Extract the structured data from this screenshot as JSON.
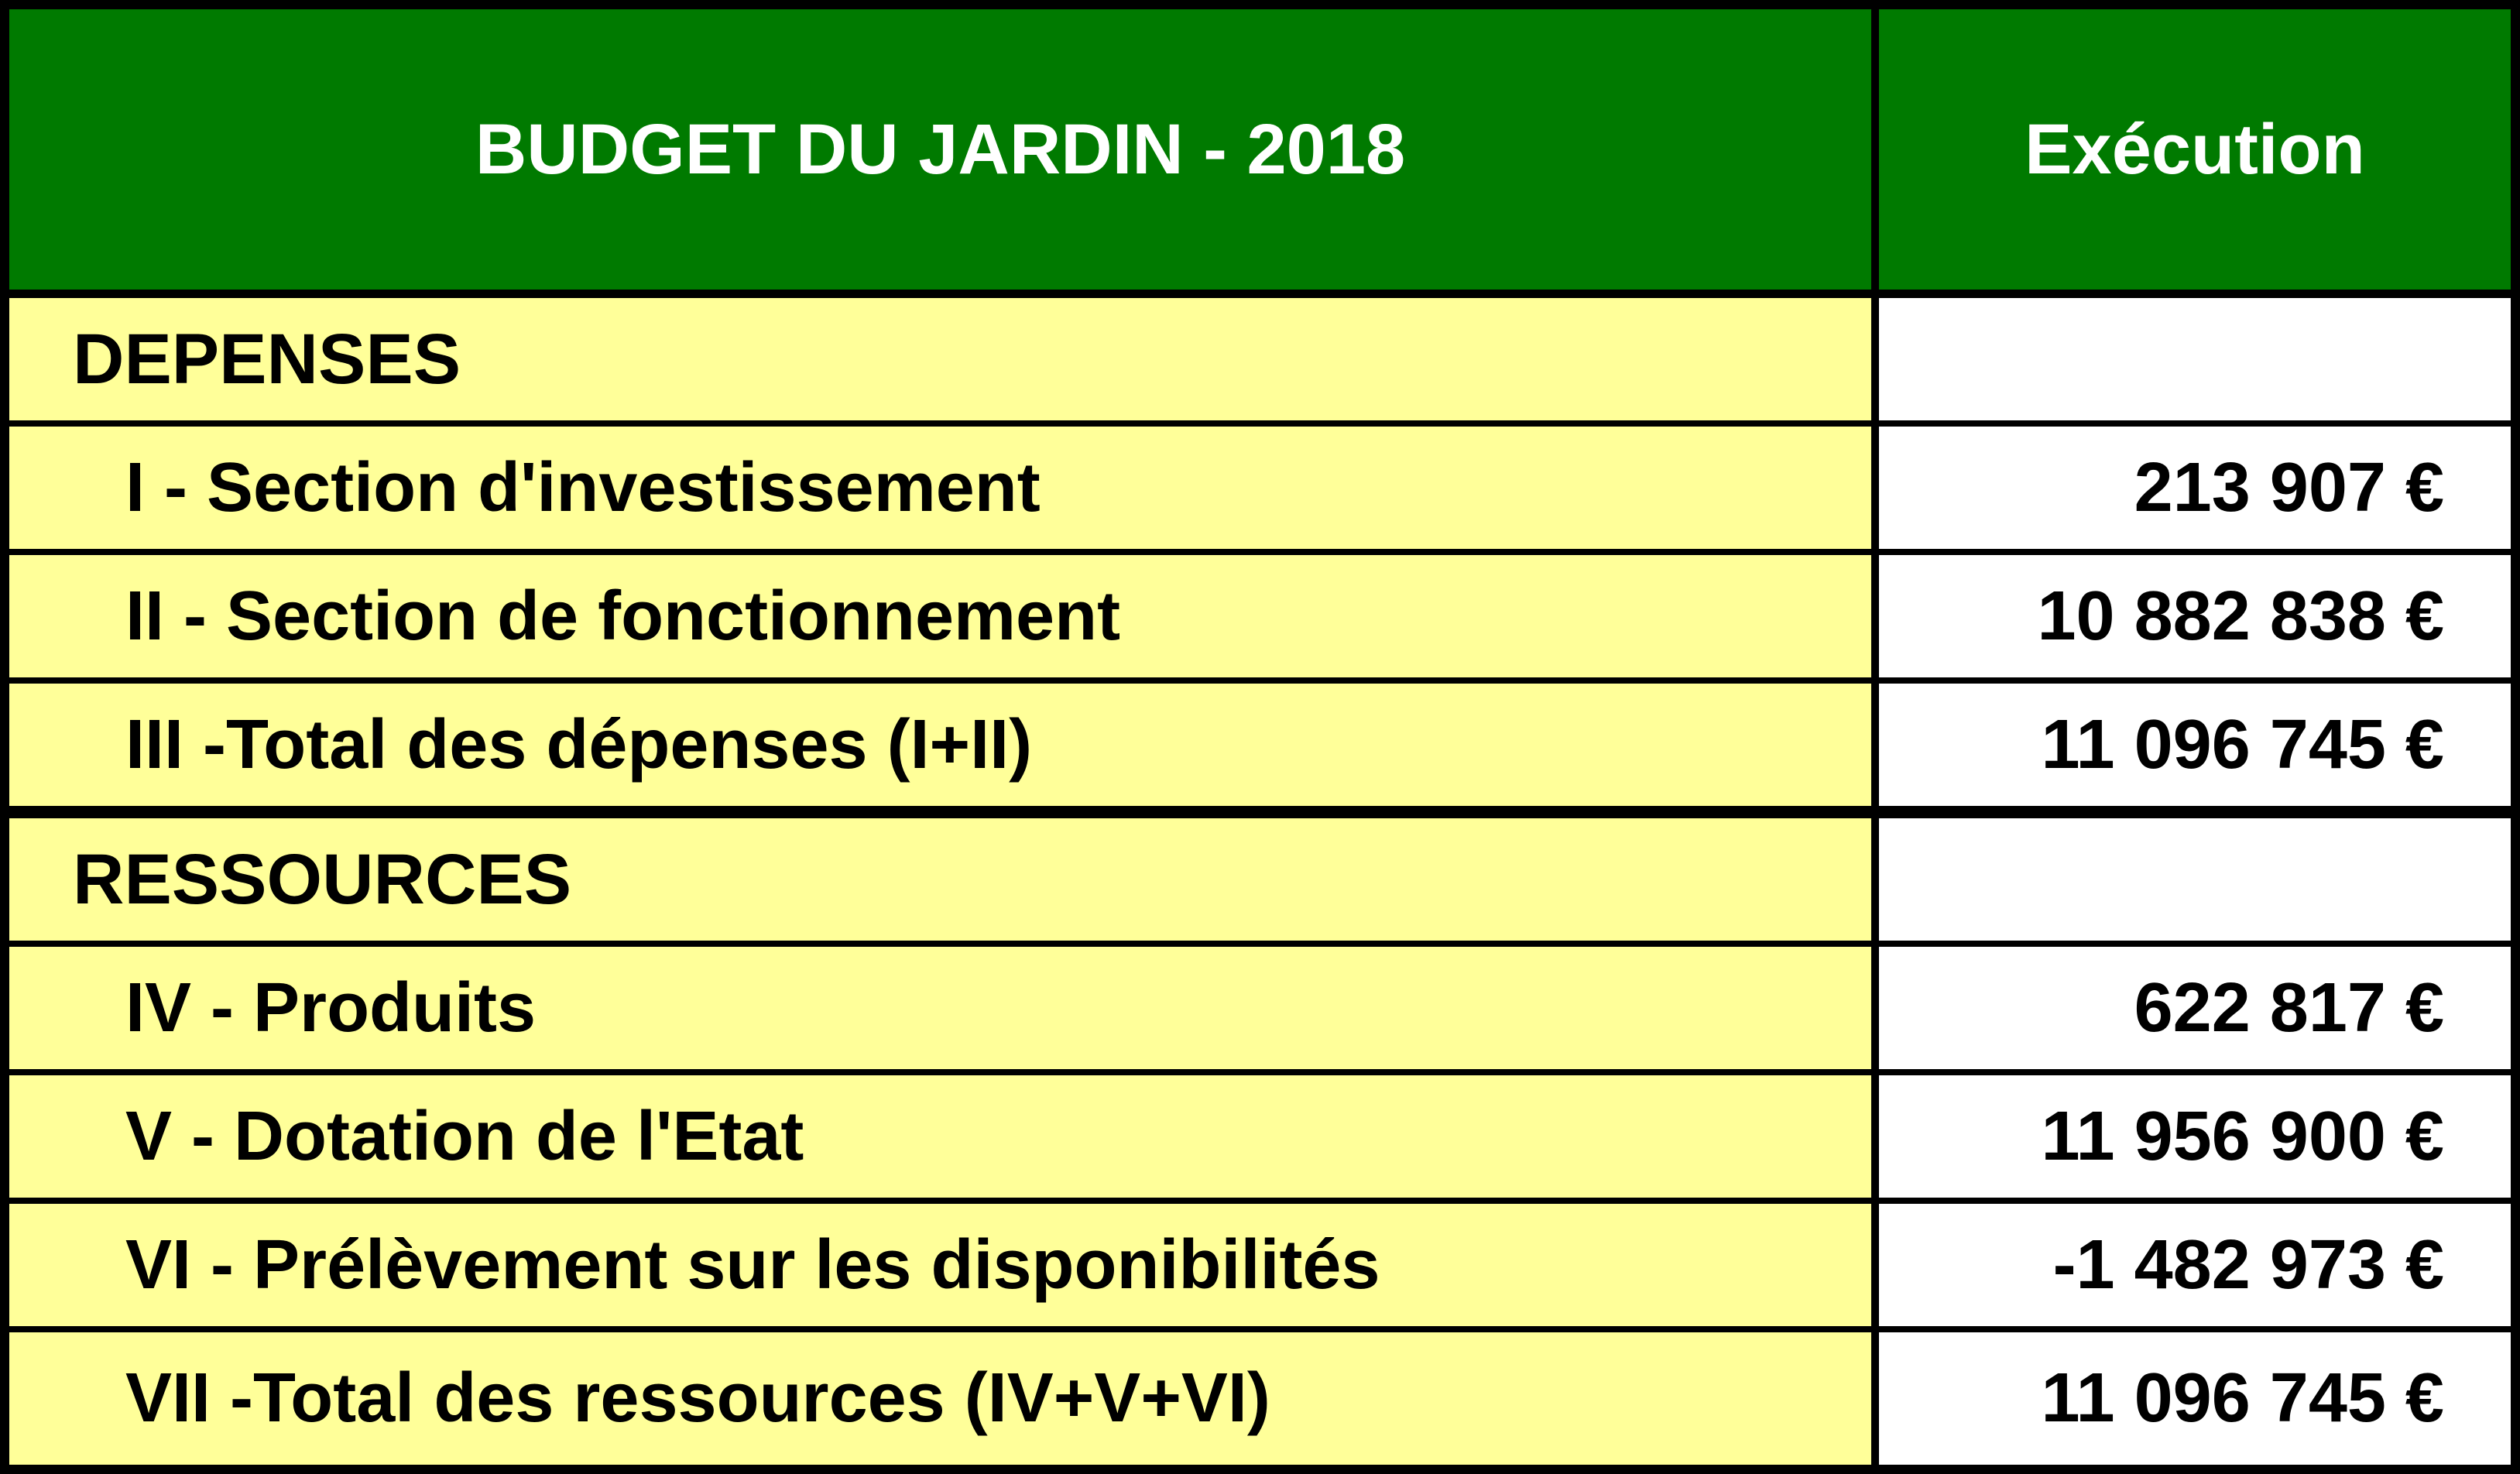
{
  "header": {
    "title": "BUDGET DU JARDIN - 2018",
    "column": "Exécution"
  },
  "colors": {
    "header_bg": "#007a00",
    "label_bg": "#ffff99",
    "value_bg": "#ffffff",
    "border": "#000000"
  },
  "rows": [
    {
      "kind": "section",
      "label": "DEPENSES",
      "value": ""
    },
    {
      "kind": "item",
      "label": "I - Section d'investissement",
      "value": "213 907 €"
    },
    {
      "kind": "item",
      "label": "II - Section de fonctionnement",
      "value": "10 882 838 €"
    },
    {
      "kind": "item",
      "label": "III -Total des dépenses (I+II)",
      "value": "11 096 745 €"
    },
    {
      "kind": "section",
      "label": "RESSOURCES",
      "value": ""
    },
    {
      "kind": "item",
      "label": "IV - Produits",
      "value": "622 817 €"
    },
    {
      "kind": "item",
      "label": "V - Dotation de l'Etat",
      "value": "11 956 900 €"
    },
    {
      "kind": "item",
      "label": "VI - Prélèvement sur les disponibilités",
      "value": "-1 482 973 €"
    },
    {
      "kind": "item",
      "label": "VII -Total des ressources (IV+V+VI)",
      "value": "11 096 745 €"
    }
  ]
}
